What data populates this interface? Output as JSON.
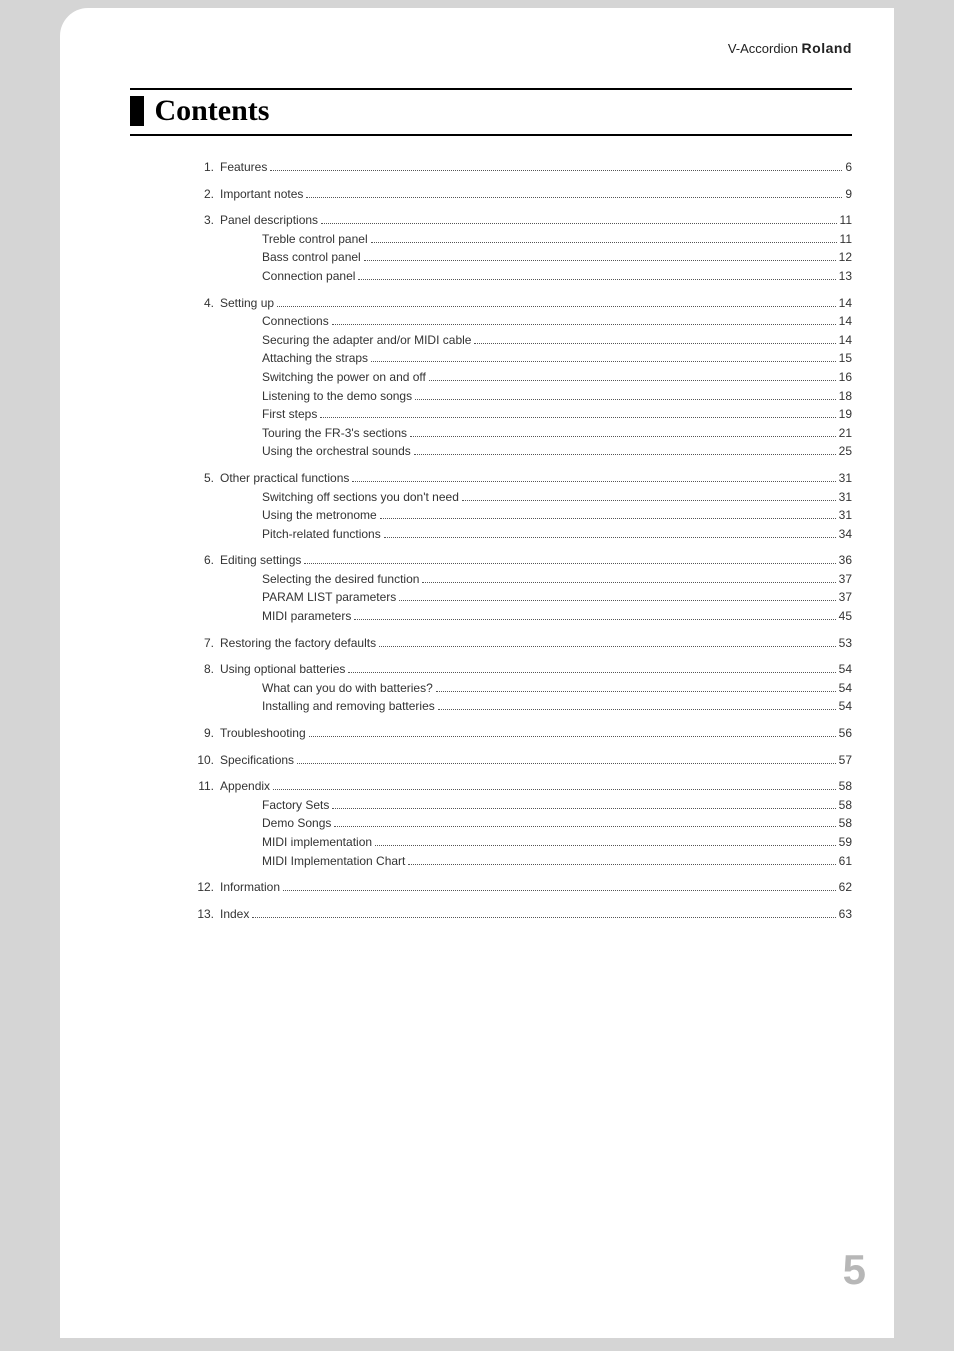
{
  "header": {
    "product": "V-Accordion",
    "brand": "Roland"
  },
  "title": "Contents",
  "page_number": "5",
  "toc": [
    {
      "num": "1.",
      "label": "Features",
      "page": "6",
      "subs": []
    },
    {
      "num": "2.",
      "label": "Important notes",
      "page": "9",
      "subs": []
    },
    {
      "num": "3.",
      "label": "Panel descriptions",
      "page": "11",
      "subs": [
        {
          "label": "Treble control panel",
          "page": "11"
        },
        {
          "label": "Bass control panel",
          "page": "12"
        },
        {
          "label": "Connection panel",
          "page": "13"
        }
      ]
    },
    {
      "num": "4.",
      "label": "Setting up",
      "page": "14",
      "subs": [
        {
          "label": "Connections",
          "page": "14"
        },
        {
          "label": "Securing the adapter and/or MIDI cable",
          "page": "14"
        },
        {
          "label": "Attaching the straps",
          "page": "15"
        },
        {
          "label": "Switching the power on and off",
          "page": "16"
        },
        {
          "label": "Listening to the demo songs",
          "page": "18"
        },
        {
          "label": "First steps",
          "page": "19"
        },
        {
          "label": "Touring the FR-3's sections",
          "page": "21"
        },
        {
          "label": "Using the orchestral sounds",
          "page": "25"
        }
      ]
    },
    {
      "num": "5.",
      "label": "Other practical functions",
      "page": "31",
      "subs": [
        {
          "label": "Switching off sections you don't need",
          "page": "31"
        },
        {
          "label": "Using the metronome",
          "page": "31"
        },
        {
          "label": "Pitch-related functions",
          "page": "34"
        }
      ]
    },
    {
      "num": "6.",
      "label": "Editing settings",
      "page": "36",
      "subs": [
        {
          "label": "Selecting the desired function",
          "page": "37"
        },
        {
          "label": "PARAM LIST parameters",
          "page": "37"
        },
        {
          "label": "MIDI parameters",
          "page": "45"
        }
      ]
    },
    {
      "num": "7.",
      "label": "Restoring the factory defaults",
      "page": "53",
      "subs": []
    },
    {
      "num": "8.",
      "label": "Using optional batteries",
      "page": "54",
      "subs": [
        {
          "label": "What can you do with batteries?",
          "page": "54"
        },
        {
          "label": "Installing and removing batteries",
          "page": "54"
        }
      ]
    },
    {
      "num": "9.",
      "label": "Troubleshooting",
      "page": "56",
      "subs": []
    },
    {
      "num": "10.",
      "label": "Specifications",
      "page": "57",
      "subs": []
    },
    {
      "num": "11.",
      "label": "Appendix",
      "page": "58",
      "subs": [
        {
          "label": "Factory Sets",
          "page": "58"
        },
        {
          "label": "Demo Songs",
          "page": "58"
        },
        {
          "label": "MIDI implementation",
          "page": "59"
        },
        {
          "label": "MIDI Implementation Chart",
          "page": "61"
        }
      ]
    },
    {
      "num": "12.",
      "label": "Information",
      "page": "62",
      "subs": []
    },
    {
      "num": "13.",
      "label": "Index",
      "page": "63",
      "subs": []
    }
  ],
  "styles": {
    "background_outer": "#d5d5d5",
    "background_page": "#ffffff",
    "text_color": "#333333",
    "rule_color": "#000000",
    "page_number_color": "#b7b7b7",
    "title_font_family": "Georgia, serif",
    "title_fontsize_pt": 22,
    "body_fontsize_pt": 9,
    "page_number_fontsize_pt": 32
  }
}
